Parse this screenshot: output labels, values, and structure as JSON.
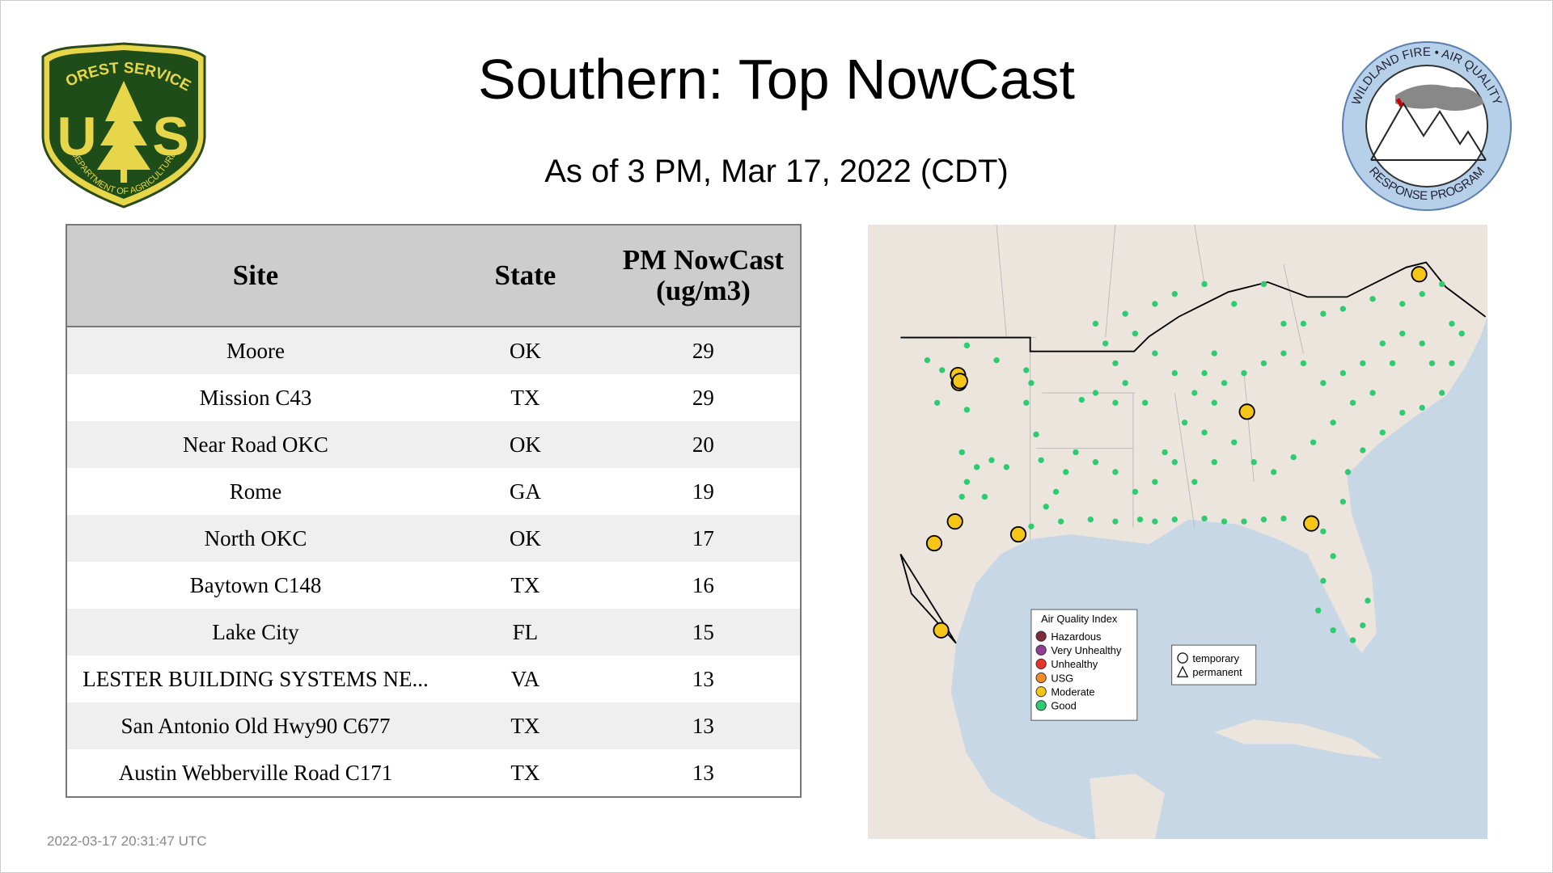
{
  "header": {
    "title": "Southern: Top NowCast",
    "subtitle": "As of  3 PM, Mar 17, 2022 (CDT)"
  },
  "logos": {
    "left": {
      "top": "FOREST SERVICE",
      "letter1": "U",
      "letter2": "S",
      "bottom": "DEPARTMENT OF AGRICULTURE"
    },
    "right": {
      "top": "WILDLAND FIRE • AIR QUALITY",
      "bottom": "RESPONSE PROGRAM"
    }
  },
  "table": {
    "columns": [
      "Site",
      "State",
      "PM NowCast (ug/m3)"
    ],
    "rows": [
      [
        "Moore",
        "OK",
        29
      ],
      [
        "Mission C43",
        "TX",
        29
      ],
      [
        "Near Road OKC",
        "OK",
        20
      ],
      [
        "Rome",
        "GA",
        19
      ],
      [
        "North OKC",
        "OK",
        17
      ],
      [
        "Baytown C148",
        "TX",
        16
      ],
      [
        "Lake City",
        "FL",
        15
      ],
      [
        "LESTER BUILDING SYSTEMS NE...",
        "VA",
        13
      ],
      [
        "San Antonio Old Hwy90 C677",
        "TX",
        13
      ],
      [
        "Austin Webberville Road C171",
        "TX",
        13
      ]
    ]
  },
  "map": {
    "aqi_legend": {
      "title": "Air Quality Index",
      "items": [
        "Hazardous",
        "Very Unhealthy",
        "Unhealthy",
        "USG",
        "Moderate",
        "Good"
      ]
    },
    "shape_legend": [
      "temporary",
      "permanent"
    ]
  },
  "footer": {
    "timestamp": "2022-03-17 20:31:47 UTC"
  }
}
